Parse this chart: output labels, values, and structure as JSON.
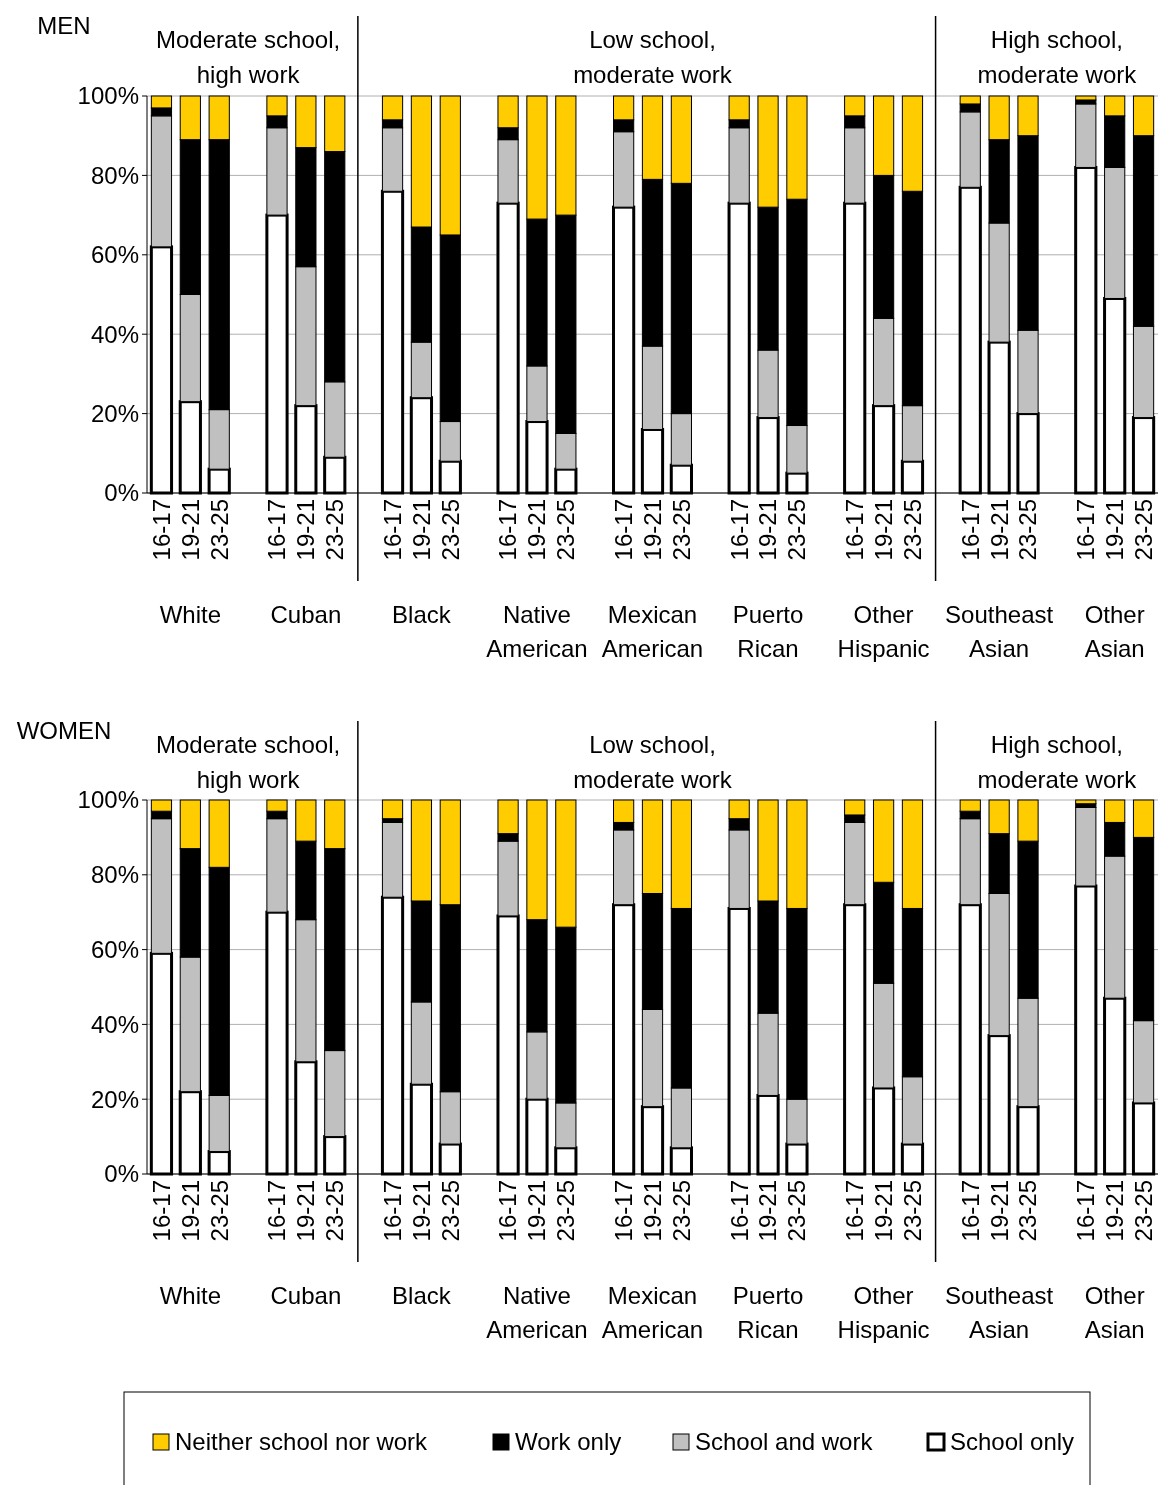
{
  "chart_data": [
    {
      "type": "bar",
      "title": "MEN",
      "stacked": true,
      "categories": [
        "16-17",
        "19-21",
        "23-25",
        "16-17",
        "19-21",
        "23-25",
        "16-17",
        "19-21",
        "23-25",
        "16-17",
        "19-21",
        "23-25",
        "16-17",
        "19-21",
        "23-25",
        "16-17",
        "19-21",
        "23-25",
        "16-17",
        "19-21",
        "23-25",
        "16-17",
        "19-21",
        "23-25",
        "16-17",
        "19-21",
        "23-25"
      ],
      "annotations": [
        "Moderate school, high work",
        "Low school, moderate work",
        "High school, moderate work",
        "White",
        "Cuban",
        "Black",
        "Native American",
        "Mexican American",
        "Puerto Rican",
        "Other Hispanic",
        "Southeast Asian",
        "Other Asian"
      ],
      "series": [
        {
          "color": "#ffffff",
          "values": [
            62,
            23,
            6,
            70,
            22,
            9,
            76,
            24,
            8,
            73,
            18,
            6,
            72,
            16,
            7,
            73,
            19,
            5,
            73,
            22,
            8,
            77,
            38,
            20,
            82,
            49,
            19
          ]
        },
        {
          "color": "#c0c0c0",
          "values": [
            33,
            27,
            15,
            22,
            35,
            19,
            16,
            14,
            10,
            16,
            14,
            9,
            19,
            21,
            13,
            19,
            17,
            12,
            19,
            22,
            14,
            19,
            30,
            21,
            16,
            33,
            23
          ]
        },
        {
          "color": "#000000",
          "values": [
            2,
            39,
            68,
            3,
            30,
            58,
            2,
            29,
            47,
            3,
            37,
            55,
            3,
            42,
            58,
            2,
            36,
            57,
            3,
            36,
            54,
            2,
            21,
            49,
            1,
            13,
            48
          ]
        },
        {
          "color": "#ffcc00",
          "values": [
            3,
            11,
            11,
            5,
            13,
            14,
            6,
            33,
            35,
            8,
            31,
            30,
            6,
            21,
            22,
            6,
            28,
            26,
            5,
            20,
            24,
            2,
            11,
            10,
            1,
            5,
            10
          ]
        }
      ],
      "ylim": [
        0,
        100
      ],
      "yticks": [
        {
          "value": 0,
          "label": "0%"
        },
        {
          "value": 20,
          "label": "20%"
        },
        {
          "value": 40,
          "label": "40%"
        },
        {
          "value": 60,
          "label": "60%"
        },
        {
          "value": 80,
          "label": "80%"
        },
        {
          "value": 100,
          "label": "100%"
        }
      ],
      "grid": "y"
    },
    {
      "type": "bar",
      "title": "WOMEN",
      "stacked": true,
      "categories": [
        "16-17",
        "19-21",
        "23-25",
        "16-17",
        "19-21",
        "23-25",
        "16-17",
        "19-21",
        "23-25",
        "16-17",
        "19-21",
        "23-25",
        "16-17",
        "19-21",
        "23-25",
        "16-17",
        "19-21",
        "23-25",
        "16-17",
        "19-21",
        "23-25",
        "16-17",
        "19-21",
        "23-25",
        "16-17",
        "19-21",
        "23-25"
      ],
      "annotations": [
        "Moderate school, high work",
        "Low school, moderate work",
        "High school, moderate work",
        "White",
        "Cuban",
        "Black",
        "Native American",
        "Mexican American",
        "Puerto Rican",
        "Other Hispanic",
        "Southeast Asian",
        "Other Asian"
      ],
      "series": [
        {
          "name": "School only",
          "color": "#ffffff",
          "values": [
            59,
            22,
            6,
            70,
            30,
            10,
            74,
            24,
            8,
            69,
            20,
            7,
            72,
            18,
            7,
            71,
            21,
            8,
            72,
            23,
            8,
            72,
            37,
            18,
            77,
            47,
            19
          ]
        },
        {
          "name": "School and work",
          "color": "#c0c0c0",
          "values": [
            36,
            36,
            15,
            25,
            38,
            23,
            20,
            22,
            14,
            20,
            18,
            12,
            20,
            26,
            16,
            21,
            22,
            12,
            22,
            28,
            18,
            23,
            38,
            29,
            21,
            38,
            22
          ]
        },
        {
          "name": "Work only",
          "color": "#000000",
          "values": [
            2,
            29,
            61,
            2,
            21,
            54,
            1,
            27,
            50,
            2,
            30,
            47,
            2,
            31,
            48,
            3,
            30,
            51,
            2,
            27,
            45,
            2,
            16,
            42,
            1,
            9,
            49
          ]
        },
        {
          "name": "Neither school nor work",
          "color": "#ffcc00",
          "values": [
            3,
            13,
            18,
            3,
            11,
            13,
            5,
            27,
            28,
            9,
            32,
            34,
            6,
            25,
            29,
            5,
            27,
            29,
            4,
            22,
            29,
            3,
            9,
            11,
            1,
            6,
            10
          ]
        }
      ],
      "ylim": [
        0,
        100
      ],
      "yticks": [
        {
          "value": 0,
          "label": "0%"
        },
        {
          "value": 20,
          "label": "20%"
        },
        {
          "value": 40,
          "label": "40%"
        },
        {
          "value": 60,
          "label": "60%"
        },
        {
          "value": 80,
          "label": "80%"
        },
        {
          "value": 100,
          "label": "100%"
        }
      ],
      "grid": "y",
      "legend": "bottom"
    }
  ]
}
